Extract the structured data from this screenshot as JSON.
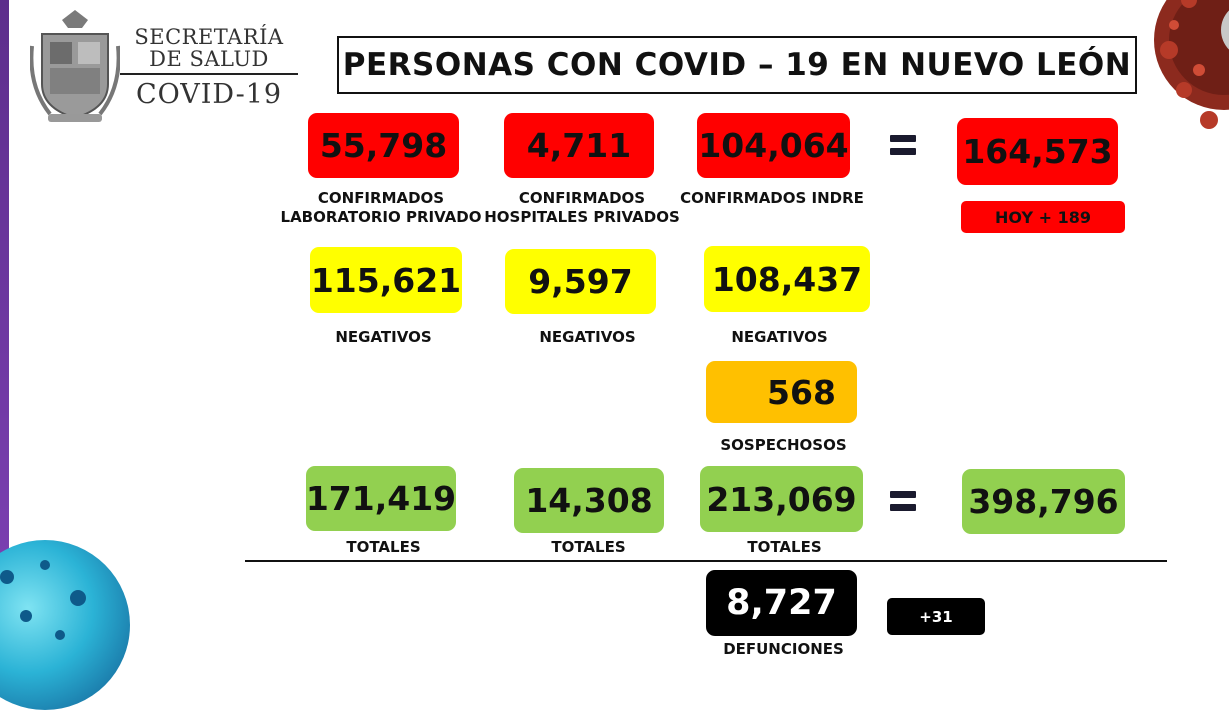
{
  "branding": {
    "line1": "SECRETARÍA",
    "line2": "DE SALUD",
    "line3": "COVID-19"
  },
  "title": "PERSONAS CON COVID – 19 EN NUEVO LEÓN",
  "confirmados": {
    "privado": {
      "value": "55,798",
      "label_l1": "CONFIRMADOS",
      "label_l2": "LABORATORIO PRIVADO"
    },
    "hospitales": {
      "value": "4,711",
      "label_l1": "CONFIRMADOS",
      "label_l2": "HOSPITALES PRIVADOS"
    },
    "indre": {
      "value": "104,064",
      "label": "CONFIRMADOS INDRE"
    },
    "total": {
      "value": "164,573",
      "hoy": "HOY + 189"
    }
  },
  "negativos": {
    "privado": {
      "value": "115,621",
      "label": "NEGATIVOS"
    },
    "hospitales": {
      "value": "9,597",
      "label": "NEGATIVOS"
    },
    "indre": {
      "value": "108,437",
      "label": "NEGATIVOS"
    }
  },
  "sospechosos": {
    "value": "568",
    "label": "SOSPECHOSOS"
  },
  "totales": {
    "privado": {
      "value": "171,419",
      "label": "TOTALES"
    },
    "hospitales": {
      "value": "14,308",
      "label": "TOTALES"
    },
    "indre": {
      "value": "213,069",
      "label": "TOTALES"
    },
    "grand": {
      "value": "398,796"
    }
  },
  "defunciones": {
    "value": "8,727",
    "label": "DEFUNCIONES",
    "delta": "+31"
  },
  "colors": {
    "red": "#ff0000",
    "yellow": "#ffff00",
    "orange": "#ffc000",
    "green": "#92d050",
    "black": "#000000"
  },
  "icons": [
    "coat-of-arms-logo",
    "virus-illustration",
    "equals-icon"
  ]
}
